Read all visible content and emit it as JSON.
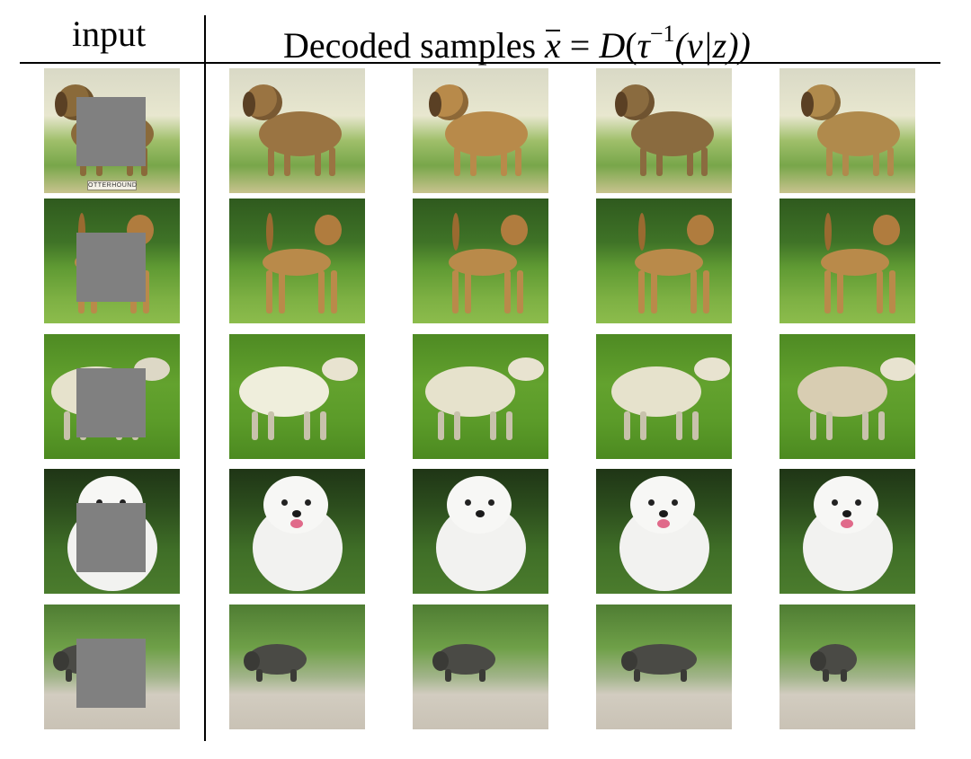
{
  "header": {
    "input_label": "input",
    "decoded_label": "Decoded samples",
    "equation": {
      "xbar": "x",
      "eq": " = ",
      "D": "D",
      "open": "(",
      "tau": "τ",
      "exponent": "−1",
      "args": "(v|z))"
    }
  },
  "rows": [
    {
      "row": "otterhound",
      "input_caption": "OTTERHOUND"
    },
    {
      "row": "terrier"
    },
    {
      "row": "sheep"
    },
    {
      "row": "white-dog"
    },
    {
      "row": "boar"
    }
  ],
  "colors": {
    "mask": "#808080",
    "rule": "#000000",
    "tan_dog": "#b98a4a",
    "white_dog": "#f2f2f0",
    "sheep": "#e6e2cc",
    "boar": "#4a4a45"
  }
}
